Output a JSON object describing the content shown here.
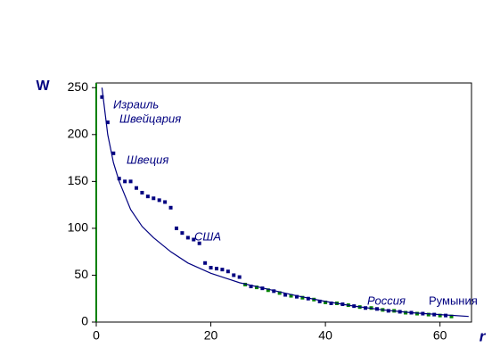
{
  "chart_data": {
    "type": "scatter",
    "x_label": "r",
    "y_label": "W",
    "xlim": [
      0,
      65.5
    ],
    "ylim": [
      0,
      255
    ],
    "xticks": [
      0,
      20,
      40,
      60
    ],
    "yticks": [
      0,
      50,
      100,
      150,
      200,
      250
    ],
    "series": [
      {
        "color": "#000080",
        "style": "markers",
        "x": [
          1,
          2,
          3,
          4,
          5,
          6,
          7,
          8,
          9,
          10,
          11,
          12,
          13,
          14,
          15,
          16,
          17,
          18,
          19,
          20,
          21,
          22,
          23,
          24,
          25,
          27,
          29,
          31,
          33,
          35,
          37,
          39,
          41,
          43,
          45,
          47,
          49,
          51,
          53,
          55,
          57,
          59,
          61
        ],
        "values": [
          240,
          213,
          180,
          153,
          150,
          150,
          143,
          138,
          134,
          132,
          130,
          128,
          122,
          100,
          95,
          90,
          88,
          84,
          63,
          58,
          57,
          56,
          54,
          50,
          48,
          38,
          36,
          33,
          29,
          27,
          25,
          22,
          20,
          19,
          17,
          15,
          14,
          12,
          11,
          10,
          9,
          8,
          7
        ]
      },
      {
        "color": "#008000",
        "style": "markers",
        "x": [
          26,
          28,
          30,
          32,
          34,
          36,
          38,
          40,
          42,
          44,
          46,
          48,
          50,
          52,
          54,
          56,
          58,
          60,
          62
        ],
        "values": [
          40,
          37,
          34,
          31,
          28,
          26,
          24,
          21,
          20,
          18,
          16,
          15,
          13,
          12,
          10,
          9,
          8,
          7,
          6
        ]
      },
      {
        "color": "#000080",
        "style": "line",
        "x": [
          1,
          2,
          3,
          4,
          6,
          8,
          10,
          13,
          16,
          20,
          25,
          30,
          35,
          40,
          45,
          50,
          55,
          60,
          65
        ],
        "values": [
          250,
          200,
          170,
          150,
          120,
          102,
          90,
          75,
          63,
          52,
          42,
          35,
          28,
          22,
          17,
          13,
          10,
          8,
          6
        ]
      }
    ],
    "annotations": [
      "Израиль",
      "Швейцария",
      "Швеция",
      "США",
      "Россия",
      "Румыния"
    ]
  }
}
